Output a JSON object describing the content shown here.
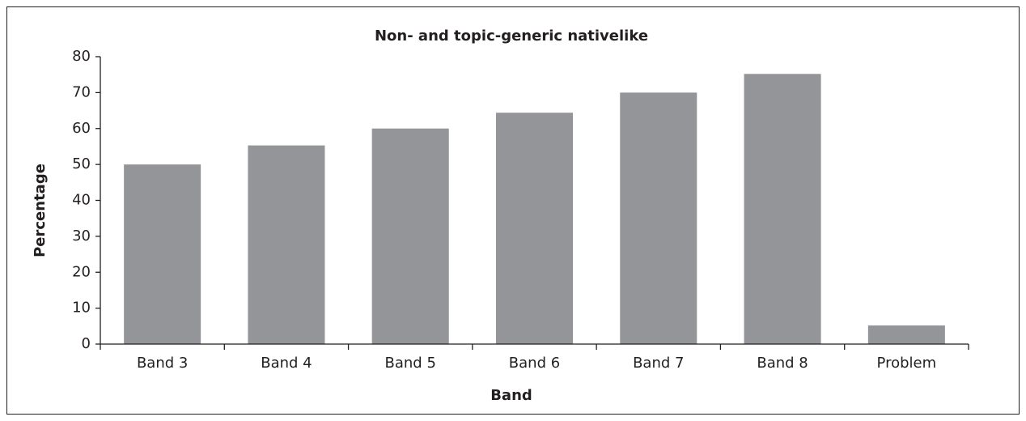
{
  "chart_data": {
    "type": "bar",
    "title": "Non- and topic-generic nativelike",
    "x_label": "Band",
    "y_label": "Percentage",
    "categories": [
      "Band 3",
      "Band 4",
      "Band 5",
      "Band 6",
      "Band 7",
      "Band 8",
      "Problem"
    ],
    "values": [
      50,
      55.3,
      60,
      64.4,
      70,
      75.2,
      5.2
    ],
    "color": "#939598",
    "ylim": [
      0,
      80
    ],
    "yticks": [
      0,
      10,
      20,
      30,
      40,
      50,
      60,
      70,
      80
    ],
    "grid": false
  }
}
